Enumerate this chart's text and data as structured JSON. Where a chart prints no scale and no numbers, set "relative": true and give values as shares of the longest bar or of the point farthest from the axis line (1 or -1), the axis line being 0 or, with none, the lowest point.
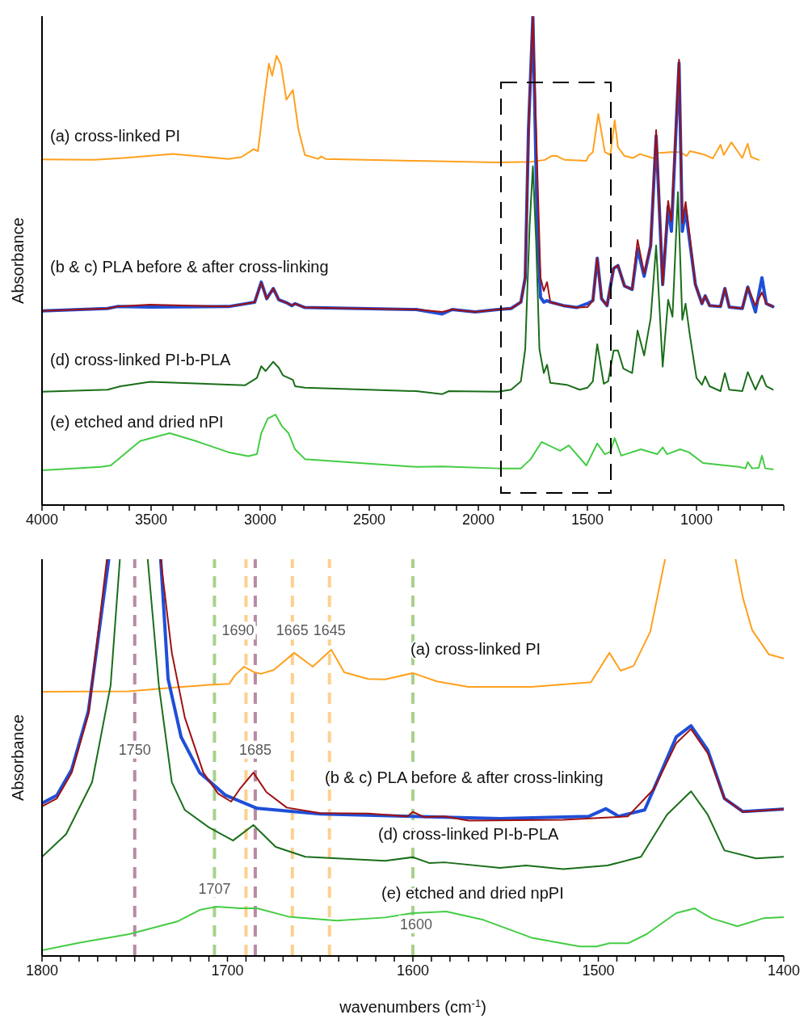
{
  "chart_data": [
    {
      "type": "line",
      "relative": true,
      "ylabel": "Absorbance",
      "xlim": [
        4000,
        600
      ],
      "xticks": [
        4000,
        {
          "value": 3900,
          "label": null
        },
        {
          "value": 3800,
          "label": null
        },
        {
          "value": 3700,
          "label": null
        },
        {
          "value": 3600,
          "label": null
        },
        3500,
        {
          "value": 3400,
          "label": null
        },
        {
          "value": 3300,
          "label": null
        },
        {
          "value": 3200,
          "label": null
        },
        {
          "value": 3100,
          "label": null
        },
        3000,
        {
          "value": 2900,
          "label": null
        },
        {
          "value": 2800,
          "label": null
        },
        {
          "value": 2700,
          "label": null
        },
        {
          "value": 2600,
          "label": null
        },
        2500,
        {
          "value": 2400,
          "label": null
        },
        {
          "value": 2300,
          "label": null
        },
        {
          "value": 2200,
          "label": null
        },
        {
          "value": 2100,
          "label": null
        },
        2000,
        {
          "value": 1900,
          "label": null
        },
        {
          "value": 1800,
          "label": null
        },
        {
          "value": 1700,
          "label": null
        },
        {
          "value": 1600,
          "label": null
        },
        1500,
        {
          "value": 1400,
          "label": null
        },
        {
          "value": 1300,
          "label": null
        },
        {
          "value": 1200,
          "label": null
        },
        {
          "value": 1100,
          "label": null
        },
        1000,
        {
          "value": 900,
          "label": null
        },
        {
          "value": 800,
          "label": null
        },
        {
          "value": 700,
          "label": null
        },
        {
          "value": 600,
          "label": null
        }
      ],
      "series": [
        {
          "color": "#ffa01e",
          "x": [
            4000,
            3760,
            3625,
            3400,
            3145,
            3085,
            3030,
            3010,
            2980,
            2960,
            2945,
            2925,
            2905,
            2880,
            2850,
            2825,
            2795,
            2735,
            2720,
            2700,
            2285,
            1910,
            1760,
            1695,
            1665,
            1640,
            1605,
            1505,
            1495,
            1475,
            1450,
            1420,
            1395,
            1375,
            1360,
            1330,
            1290,
            1260,
            1195,
            1180,
            1120,
            1075,
            1045,
            1030,
            965,
            925,
            890,
            875,
            840,
            790,
            765,
            750,
            715
          ],
          "values": [
            0.707,
            0.706,
            0.71,
            0.718,
            0.708,
            0.712,
            0.728,
            0.724,
            0.835,
            0.903,
            0.878,
            0.919,
            0.901,
            0.829,
            0.849,
            0.769,
            0.716,
            0.708,
            0.713,
            0.708,
            0.704,
            0.701,
            0.702,
            0.706,
            0.714,
            0.714,
            0.706,
            0.704,
            0.714,
            0.722,
            0.8,
            0.722,
            0.716,
            0.787,
            0.732,
            0.714,
            0.71,
            0.718,
            0.709,
            0.72,
            0.722,
            0.722,
            0.714,
            0.724,
            0.717,
            0.709,
            0.737,
            0.716,
            0.742,
            0.71,
            0.739,
            0.712,
            0.706
          ]
        },
        {
          "color": "#1f4fd8",
          "x": [
            4000,
            3700,
            3655,
            3505,
            3145,
            3025,
            2995,
            2970,
            2940,
            2915,
            2875,
            2855,
            2840,
            2795,
            2285,
            2165,
            2120,
            2015,
            1910,
            1850,
            1805,
            1785,
            1770,
            1750,
            1730,
            1715,
            1700,
            1685,
            1670,
            1610,
            1550,
            1500,
            1475,
            1455,
            1435,
            1410,
            1380,
            1360,
            1330,
            1295,
            1270,
            1240,
            1210,
            1185,
            1155,
            1130,
            1115,
            1080,
            1065,
            1050,
            1005,
            975,
            960,
            940,
            890,
            870,
            850,
            790,
            765,
            730,
            700,
            680,
            650
          ],
          "values": [
            0.397,
            0.402,
            0.406,
            0.405,
            0.406,
            0.415,
            0.456,
            0.422,
            0.443,
            0.42,
            0.413,
            0.408,
            0.412,
            0.404,
            0.4,
            0.391,
            0.4,
            0.395,
            0.4,
            0.402,
            0.415,
            0.465,
            0.769,
            1.0,
            0.57,
            0.425,
            0.415,
            0.418,
            0.415,
            0.408,
            0.404,
            0.412,
            0.418,
            0.505,
            0.422,
            0.408,
            0.484,
            0.49,
            0.448,
            0.441,
            0.524,
            0.468,
            0.531,
            0.755,
            0.451,
            0.61,
            0.56,
            0.904,
            0.56,
            0.603,
            0.451,
            0.412,
            0.428,
            0.408,
            0.406,
            0.443,
            0.405,
            0.402,
            0.446,
            0.395,
            0.465,
            0.412,
            0.406
          ]
        },
        {
          "color": "#a01010",
          "x": [
            4000,
            3700,
            3655,
            3505,
            3145,
            3025,
            2995,
            2970,
            2940,
            2915,
            2875,
            2855,
            2840,
            2795,
            2285,
            2165,
            2120,
            2015,
            1910,
            1850,
            1805,
            1785,
            1770,
            1750,
            1730,
            1715,
            1700,
            1685,
            1670,
            1610,
            1550,
            1500,
            1475,
            1455,
            1435,
            1410,
            1380,
            1360,
            1330,
            1295,
            1270,
            1240,
            1210,
            1185,
            1155,
            1130,
            1115,
            1080,
            1065,
            1050,
            1005,
            975,
            960,
            940,
            890,
            870,
            850,
            790,
            765,
            730,
            700,
            680,
            650
          ],
          "values": [
            0.397,
            0.402,
            0.406,
            0.41,
            0.406,
            0.415,
            0.455,
            0.422,
            0.443,
            0.42,
            0.413,
            0.408,
            0.412,
            0.404,
            0.4,
            0.395,
            0.4,
            0.395,
            0.4,
            0.402,
            0.415,
            0.465,
            0.769,
            1.0,
            0.689,
            0.465,
            0.438,
            0.456,
            0.415,
            0.408,
            0.404,
            0.405,
            0.418,
            0.505,
            0.422,
            0.408,
            0.484,
            0.49,
            0.448,
            0.441,
            0.542,
            0.474,
            0.531,
            0.767,
            0.451,
            0.622,
            0.58,
            0.911,
            0.577,
            0.62,
            0.451,
            0.412,
            0.428,
            0.408,
            0.406,
            0.443,
            0.405,
            0.402,
            0.446,
            0.408,
            0.435,
            0.412,
            0.406
          ]
        },
        {
          "color": "#1a6e1a",
          "x": [
            4000,
            3700,
            3640,
            3505,
            3070,
            3015,
            2995,
            2975,
            2940,
            2915,
            2895,
            2870,
            2850,
            2840,
            2795,
            2285,
            2165,
            2135,
            1910,
            1850,
            1805,
            1785,
            1765,
            1750,
            1735,
            1720,
            1700,
            1685,
            1670,
            1595,
            1535,
            1500,
            1475,
            1455,
            1425,
            1405,
            1380,
            1360,
            1335,
            1295,
            1270,
            1240,
            1210,
            1185,
            1155,
            1130,
            1110,
            1085,
            1065,
            1050,
            1030,
            1000,
            975,
            960,
            940,
            890,
            870,
            850,
            790,
            765,
            730,
            700,
            680,
            650
          ],
          "values": [
            0.232,
            0.236,
            0.243,
            0.252,
            0.245,
            0.26,
            0.284,
            0.274,
            0.293,
            0.281,
            0.265,
            0.26,
            0.256,
            0.243,
            0.24,
            0.233,
            0.227,
            0.233,
            0.232,
            0.236,
            0.253,
            0.319,
            0.57,
            0.693,
            0.537,
            0.319,
            0.27,
            0.287,
            0.25,
            0.246,
            0.236,
            0.24,
            0.253,
            0.329,
            0.248,
            0.253,
            0.316,
            0.316,
            0.279,
            0.27,
            0.357,
            0.306,
            0.382,
            0.531,
            0.283,
            0.42,
            0.385,
            0.64,
            0.379,
            0.412,
            0.346,
            0.26,
            0.246,
            0.263,
            0.243,
            0.233,
            0.27,
            0.236,
            0.233,
            0.272,
            0.236,
            0.265,
            0.243,
            0.236
          ]
        },
        {
          "color": "#44cc44",
          "x": [
            4000,
            3730,
            3685,
            3550,
            3415,
            3295,
            3145,
            3055,
            3015,
            2995,
            2965,
            2930,
            2900,
            2870,
            2840,
            2795,
            2285,
            2165,
            1910,
            1805,
            1760,
            1710,
            1625,
            1585,
            1505,
            1455,
            1420,
            1395,
            1375,
            1345,
            1255,
            1180,
            1155,
            1135,
            1075,
            1035,
            970,
            805,
            775,
            765,
            745,
            715,
            700,
            685,
            650
          ],
          "values": [
            0.071,
            0.078,
            0.081,
            0.131,
            0.147,
            0.131,
            0.108,
            0.1,
            0.104,
            0.147,
            0.177,
            0.185,
            0.161,
            0.147,
            0.114,
            0.094,
            0.078,
            0.079,
            0.075,
            0.075,
            0.094,
            0.129,
            0.111,
            0.122,
            0.081,
            0.126,
            0.104,
            0.109,
            0.137,
            0.101,
            0.114,
            0.104,
            0.118,
            0.104,
            0.114,
            0.108,
            0.086,
            0.078,
            0.075,
            0.088,
            0.075,
            0.076,
            0.101,
            0.075,
            0.073
          ]
        }
      ],
      "annotations": [
        "(a) cross-linked PI",
        "(b & c) PLA before & after cross-linking",
        "(d) cross-linked PI-b-PLA",
        "(e) etched and dried nPI"
      ]
    },
    {
      "type": "line",
      "relative": true,
      "ylabel": "Absorbance",
      "xlabel": "wavenumbers (cm$^{-1}$)",
      "xlim": [
        1800,
        1400
      ],
      "xticks": [
        1800,
        {
          "value": 1790,
          "label": null
        },
        {
          "value": 1780,
          "label": null
        },
        {
          "value": 1770,
          "label": null
        },
        {
          "value": 1760,
          "label": null
        },
        {
          "value": 1750,
          "label": null
        },
        {
          "value": 1740,
          "label": null
        },
        {
          "value": 1730,
          "label": null
        },
        {
          "value": 1720,
          "label": null
        },
        {
          "value": 1710,
          "label": null
        },
        1700,
        {
          "value": 1690,
          "label": null
        },
        {
          "value": 1680,
          "label": null
        },
        {
          "value": 1670,
          "label": null
        },
        {
          "value": 1660,
          "label": null
        },
        {
          "value": 1650,
          "label": null
        },
        {
          "value": 1640,
          "label": null
        },
        {
          "value": 1630,
          "label": null
        },
        {
          "value": 1620,
          "label": null
        },
        {
          "value": 1610,
          "label": null
        },
        1600,
        {
          "value": 1590,
          "label": null
        },
        {
          "value": 1580,
          "label": null
        },
        {
          "value": 1570,
          "label": null
        },
        {
          "value": 1560,
          "label": null
        },
        {
          "value": 1550,
          "label": null
        },
        {
          "value": 1540,
          "label": null
        },
        {
          "value": 1530,
          "label": null
        },
        {
          "value": 1520,
          "label": null
        },
        {
          "value": 1510,
          "label": null
        },
        1500,
        {
          "value": 1490,
          "label": null
        },
        {
          "value": 1480,
          "label": null
        },
        {
          "value": 1470,
          "label": null
        },
        {
          "value": 1460,
          "label": null
        },
        {
          "value": 1450,
          "label": null
        },
        {
          "value": 1440,
          "label": null
        },
        {
          "value": 1430,
          "label": null
        },
        {
          "value": 1420,
          "label": null
        },
        {
          "value": 1410,
          "label": null
        },
        1400
      ],
      "ref_lines": [
        {
          "axis": "x",
          "value": 1750,
          "label": "1750",
          "color": "#b88aa6",
          "line_style": "dashed"
        },
        {
          "axis": "x",
          "value": 1707,
          "label": "1707",
          "color": "#a9d18e",
          "line_style": "dashed"
        },
        {
          "axis": "x",
          "value": 1690,
          "label": "1690",
          "color": "#fdd08e",
          "line_style": "dashed"
        },
        {
          "axis": "x",
          "value": 1685,
          "label": "1685",
          "color": "#b88aa6",
          "line_style": "dashed"
        },
        {
          "axis": "x",
          "value": 1665,
          "label": "1665",
          "color": "#fdd08e",
          "line_style": "dashed"
        },
        {
          "axis": "x",
          "value": 1645,
          "label": "1645",
          "color": "#fdd08e",
          "line_style": "dashed"
        },
        {
          "axis": "x",
          "value": 1600,
          "label": "1600",
          "color": "#a9d18e",
          "line_style": "dashed"
        }
      ],
      "series": [
        {
          "color": "#ffa01e",
          "x": [
            1800,
            1753,
            1730,
            1708,
            1699,
            1696,
            1691,
            1686,
            1682,
            1675,
            1664,
            1654,
            1644,
            1637,
            1624,
            1615,
            1600,
            1587,
            1570,
            1536,
            1504,
            1494,
            1488,
            1481,
            1472,
            1464,
            1445,
            1426,
            1422,
            1417,
            1408,
            1400
          ],
          "values": [
            0.666,
            0.667,
            0.676,
            0.684,
            0.686,
            0.707,
            0.729,
            0.716,
            0.711,
            0.721,
            0.764,
            0.729,
            0.772,
            0.715,
            0.698,
            0.697,
            0.713,
            0.692,
            0.678,
            0.678,
            0.69,
            0.764,
            0.719,
            0.731,
            0.817,
            1.0,
            null,
            1.0,
            0.902,
            0.821,
            0.76,
            0.75
          ]
        },
        {
          "color": "#1f4fd8",
          "x": [
            1800,
            1792,
            1784,
            1775,
            1764,
            1750,
            1736,
            1732,
            1725,
            1715,
            1701,
            1684,
            1650,
            1600,
            1553,
            1505,
            1496,
            1489,
            1475,
            1467,
            1458,
            1450,
            1441,
            1432,
            1422,
            1400
          ],
          "values": [
            0.385,
            0.405,
            0.47,
            0.617,
            1.0,
            null,
            1.0,
            0.698,
            0.552,
            0.462,
            0.405,
            0.372,
            0.358,
            0.352,
            0.346,
            0.352,
            0.371,
            0.352,
            0.368,
            0.454,
            0.552,
            0.58,
            0.519,
            0.397,
            0.364,
            0.37
          ]
        },
        {
          "color": "#a01010",
          "x": [
            1800,
            1792,
            1784,
            1775,
            1765,
            1750,
            1736,
            1730,
            1723,
            1713,
            1705,
            1698,
            1693,
            1686,
            1679,
            1668,
            1650,
            1624,
            1603,
            1600,
            1594,
            1583,
            1570,
            1519,
            1484,
            1470,
            1458,
            1450,
            1441,
            1432,
            1422,
            1400
          ],
          "values": [
            0.377,
            0.397,
            0.462,
            0.609,
            1.0,
            null,
            1.0,
            0.764,
            0.601,
            0.462,
            0.409,
            0.389,
            0.423,
            0.462,
            0.413,
            0.374,
            0.36,
            0.359,
            0.352,
            0.363,
            0.35,
            0.352,
            0.341,
            0.343,
            0.352,
            0.421,
            0.536,
            0.572,
            0.511,
            0.397,
            0.363,
            0.37
          ]
        },
        {
          "color": "#1a6e1a",
          "x": [
            1800,
            1787,
            1773,
            1763,
            1758,
            1750,
            1743,
            1737,
            1730,
            1723,
            1710,
            1697,
            1686,
            1674,
            1658,
            1615,
            1600,
            1591,
            1583,
            1553,
            1539,
            1519,
            1495,
            1477,
            1463,
            1450,
            1441,
            1432,
            1415,
            1400
          ],
          "values": [
            0.25,
            0.307,
            0.438,
            0.682,
            1.0,
            null,
            1.0,
            0.682,
            0.438,
            0.368,
            0.324,
            0.291,
            0.33,
            0.275,
            0.25,
            0.24,
            0.249,
            0.234,
            0.236,
            0.222,
            0.228,
            0.219,
            0.228,
            0.25,
            0.356,
            0.415,
            0.356,
            0.266,
            0.246,
            0.25
          ]
        },
        {
          "color": "#44cc44",
          "x": [
            1800,
            1779,
            1753,
            1727,
            1715,
            1706,
            1693,
            1684,
            1667,
            1641,
            1615,
            1600,
            1582,
            1562,
            1536,
            1510,
            1501,
            1494,
            1484,
            1474,
            1458,
            1448,
            1439,
            1425,
            1411,
            1400
          ],
          "values": [
            0.014,
            0.034,
            0.055,
            0.087,
            0.116,
            0.124,
            0.12,
            0.12,
            0.099,
            0.089,
            0.097,
            0.108,
            0.112,
            0.091,
            0.046,
            0.024,
            0.024,
            0.032,
            0.032,
            0.055,
            0.108,
            0.12,
            0.095,
            0.075,
            0.095,
            0.098
          ]
        }
      ],
      "annotations": [
        "(a) cross-linked PI",
        "(b & c) PLA before & after cross-linking",
        "(d) cross-linked PI-b-PLA",
        "(e) etched and dried npPI"
      ]
    }
  ]
}
